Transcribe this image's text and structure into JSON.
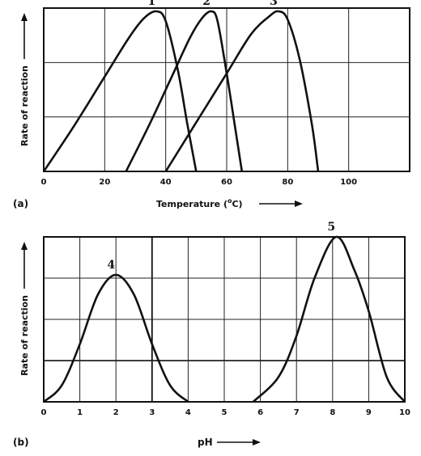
{
  "chart_data": [
    {
      "type": "line",
      "panel_label": "(a)",
      "xlabel": "Temperature (",
      "xlabel_sup": "o",
      "xlabel_end": "C)",
      "ylabel": "Rate of reaction",
      "xlim": [
        0,
        120
      ],
      "ylim": [
        0,
        1
      ],
      "xticks": [
        0,
        20,
        40,
        60,
        80,
        100
      ],
      "grid": true,
      "series": [
        {
          "name": "1",
          "x": [
            0,
            10,
            20,
            28,
            33,
            37,
            40,
            44,
            47,
            50
          ],
          "y": [
            0,
            0.28,
            0.58,
            0.82,
            0.94,
            0.98,
            0.92,
            0.62,
            0.3,
            0
          ]
        },
        {
          "name": "2",
          "x": [
            27,
            35,
            42,
            48,
            52,
            55,
            57,
            60,
            63,
            65
          ],
          "y": [
            0,
            0.3,
            0.58,
            0.82,
            0.94,
            0.98,
            0.92,
            0.6,
            0.24,
            0
          ]
        },
        {
          "name": "3",
          "x": [
            40,
            50,
            60,
            68,
            74,
            77,
            80,
            84,
            88,
            90
          ],
          "y": [
            0,
            0.3,
            0.6,
            0.84,
            0.95,
            0.98,
            0.93,
            0.68,
            0.28,
            0
          ]
        }
      ]
    },
    {
      "type": "line",
      "panel_label": "(b)",
      "xlabel": "pH",
      "ylabel": "Rate of reaction",
      "xlim": [
        0,
        10
      ],
      "ylim": [
        0,
        1
      ],
      "xticks": [
        0,
        1,
        2,
        3,
        4,
        5,
        6,
        7,
        8,
        9,
        10
      ],
      "grid": true,
      "series": [
        {
          "name": "4",
          "x": [
            0,
            0.5,
            1,
            1.5,
            2,
            2.5,
            3,
            3.5,
            4
          ],
          "y": [
            0,
            0.1,
            0.35,
            0.65,
            0.77,
            0.65,
            0.35,
            0.1,
            0
          ]
        },
        {
          "name": "5",
          "x": [
            5.8,
            6.5,
            7,
            7.5,
            8.1,
            8.6,
            9,
            9.5,
            10
          ],
          "y": [
            0,
            0.15,
            0.4,
            0.75,
            1.0,
            0.8,
            0.55,
            0.15,
            0
          ]
        }
      ]
    }
  ]
}
